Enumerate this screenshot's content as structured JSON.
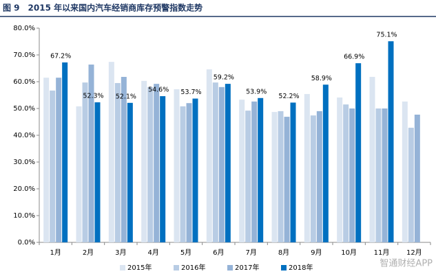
{
  "chart_data": {
    "type": "bar",
    "title": "图 9　2015 年以来国内汽车经销商库存预警指数走势",
    "categories": [
      "1月",
      "2月",
      "3月",
      "4月",
      "5月",
      "6月",
      "7月",
      "8月",
      "9月",
      "10月",
      "11月",
      "12月"
    ],
    "series": [
      {
        "name": "2015年",
        "color": "#dbe5f1",
        "values": [
          61.5,
          50.8,
          67.4,
          60.3,
          57.2,
          64.6,
          53.3,
          48.7,
          55.4,
          54.1,
          61.8,
          52.6
        ]
      },
      {
        "name": "2016年",
        "color": "#b8cce4",
        "values": [
          56.7,
          59.7,
          59.5,
          58.0,
          50.8,
          59.7,
          49.2,
          49.0,
          47.4,
          51.5,
          50.0,
          42.8
        ]
      },
      {
        "name": "2017年",
        "color": "#95b3d7",
        "values": [
          61.5,
          66.4,
          61.8,
          59.2,
          52.0,
          58.0,
          52.6,
          46.9,
          49.0,
          50.0,
          50.0,
          47.7
        ]
      },
      {
        "name": "2018年",
        "color": "#0070c0",
        "values": [
          67.2,
          52.3,
          52.1,
          54.6,
          53.7,
          59.2,
          53.9,
          52.2,
          58.9,
          66.9,
          75.1,
          null
        ],
        "value_labels": [
          "67.2%",
          "52.3%",
          "52.1%",
          "54.6%",
          "53.7%",
          "59.2%",
          "53.9%",
          "52.2%",
          "58.9%",
          "66.9%",
          "75.1%",
          null
        ]
      }
    ],
    "ylim": [
      0,
      80
    ],
    "yticks": [
      {
        "value": 0,
        "label": "0.0%"
      },
      {
        "value": 10,
        "label": "10.0%"
      },
      {
        "value": 20,
        "label": "20.0%"
      },
      {
        "value": 30,
        "label": "30.0%"
      },
      {
        "value": 40,
        "label": "40.0%"
      },
      {
        "value": 50,
        "label": "50.0%"
      },
      {
        "value": 60,
        "label": "60.0%"
      },
      {
        "value": 70,
        "label": "70.0%"
      },
      {
        "value": 80,
        "label": "80.0%"
      }
    ],
    "grid": false,
    "legend": "bottom",
    "watermark": "智通财经APP"
  }
}
